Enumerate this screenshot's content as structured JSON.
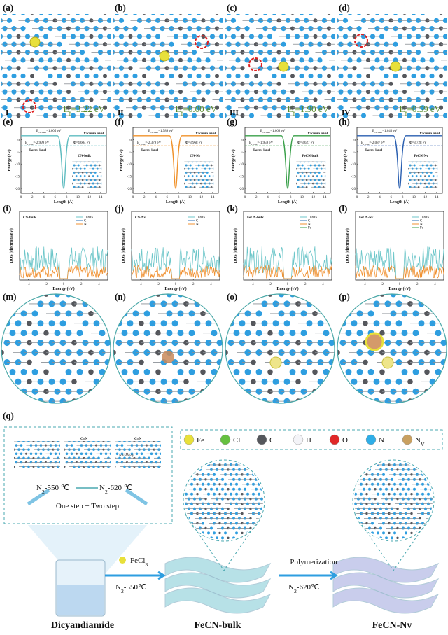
{
  "panels_top": [
    {
      "label": "(a)",
      "numeral": "I",
      "e": "E",
      "sub": "f",
      "value": "=3.22 eV"
    },
    {
      "label": "(b)",
      "numeral": "II",
      "e": "E",
      "sub": "f",
      "value": "=0.00 eV"
    },
    {
      "label": "(c)",
      "numeral": "III",
      "e": "E",
      "sub": "f",
      "value": "=1.90 eV"
    },
    {
      "label": "(d)",
      "numeral": "IV",
      "e": "E",
      "sub": "f",
      "value": "=0.59 eV"
    }
  ],
  "energy_plots": {
    "y_axis": "Energy (eV)",
    "x_axis": "Length (Å)",
    "yticks": [
      "0",
      "-5",
      "-10",
      "-15",
      "-20"
    ],
    "xticks": [
      "0",
      "2",
      "4",
      "6",
      "8",
      "10",
      "12",
      "14"
    ],
    "vacuum_label": "Vacuum level",
    "fermi_label": "Fermi level",
    "e_symbol": "E",
    "vacuum_sub": "vacuum",
    "fermi_sub": "Fermi",
    "phi": "Φ",
    "panels": [
      {
        "label": "(e)",
        "name": "CN-bulk",
        "vacuum": "=1.605 eV",
        "fermi": "=-2.999 eV",
        "work": "=4.604 eV"
      },
      {
        "label": "(f)",
        "name": "CN-Nv",
        "vacuum": "=1.589 eV",
        "fermi": "=-2.379 eV",
        "work": "=3.968 eV"
      },
      {
        "label": "(g)",
        "name": "FeCN-bulk",
        "vacuum": "=1.668 eV",
        "fermi": "=-1.959 eV",
        "work": "=3.627 eV"
      },
      {
        "label": "(h)",
        "name": "FeCN-Nv",
        "vacuum": "=1.640 eV",
        "fermi": "=-2.087 eV",
        "work": "=3.728 eV"
      }
    ]
  },
  "dos_plots": {
    "y_axis": "DOS (electrons/eV)",
    "x_axis": "Energy (eV)",
    "xticks": [
      "-4",
      "-2",
      "0",
      "2",
      "4"
    ],
    "panels": [
      {
        "label": "(i)",
        "name": "CN-bulk",
        "legend": [
          "TDOS",
          "C",
          "N"
        ]
      },
      {
        "label": "(j)",
        "name": "CN-Nv",
        "legend": [
          "TDOS",
          "C",
          "N"
        ]
      },
      {
        "label": "(k)",
        "name": "FeCN-bulk",
        "legend": [
          "TDOS",
          "C",
          "N",
          "Fe"
        ]
      },
      {
        "label": "(l)",
        "name": "FeCN-Nv",
        "legend": [
          "TDOS",
          "C",
          "N",
          "Fe"
        ]
      }
    ]
  },
  "structures": [
    "(m)",
    "(n)",
    "(o)",
    "(p)"
  ],
  "scheme": {
    "label": "(q)",
    "legend": [
      {
        "name": "Fe"
      },
      {
        "name": "Cl"
      },
      {
        "name": "C"
      },
      {
        "name": "H"
      },
      {
        "name": "O"
      },
      {
        "name": "N"
      },
      {
        "name": "N",
        "sub": "V"
      }
    ],
    "cn_label": "C≡N",
    "vacancy_label": "N vacancy",
    "step1": {
      "main": "N",
      "sub": "2",
      "rest": "-550 ℃"
    },
    "step2": {
      "main": "N",
      "sub": "2",
      "rest": "-620 ℃"
    },
    "steps": "One step + Two step",
    "precursor": "Dicyandiamide",
    "reagent": {
      "main": "FeCl",
      "sub": "3"
    },
    "cond1": {
      "main": "N",
      "sub": "2",
      "rest": "-550℃"
    },
    "product1": "FeCN-bulk",
    "process": "Polymerization",
    "cond2": {
      "main": "N",
      "sub": "2",
      "rest": "-620℃"
    },
    "product2": "FeCN-Nv"
  }
}
